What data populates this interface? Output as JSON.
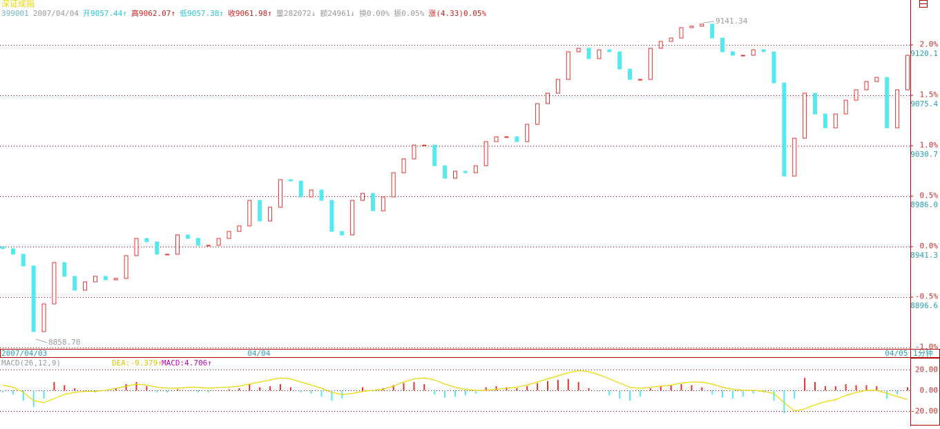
{
  "chart_data": {
    "type": "candlestick",
    "title": "深证成指",
    "header": [
      {
        "text": "399001",
        "color": "#6fb6c8"
      },
      {
        "text": "2007/04/04",
        "color": "#9a9a9a"
      },
      {
        "text": "开9057.44↑",
        "color": "#28c8d8"
      },
      {
        "text": "高9062.07↑",
        "color": "#d02020"
      },
      {
        "text": "低9057.38↑",
        "color": "#28c8d8"
      },
      {
        "text": "收9061.98↑",
        "color": "#d02020"
      },
      {
        "text": "量282072↓",
        "color": "#9a9a9a"
      },
      {
        "text": "额24961↓",
        "color": "#9a9a9a"
      },
      {
        "text": "换0.00%",
        "color": "#9a9a9a"
      },
      {
        "text": "振0.05%",
        "color": "#9a9a9a"
      },
      {
        "text": "涨(4.33)0.05%",
        "color": "#d02020"
      }
    ],
    "annotations": [
      "8858.70",
      "9141.34"
    ],
    "period": "1分钟",
    "up_color": "#e03030",
    "down_color": "#54e8f0",
    "categories": [
      "2007/04/03",
      null,
      null,
      null,
      null,
      null,
      null,
      null,
      null,
      null,
      null,
      null,
      null,
      null,
      null,
      null,
      null,
      null,
      null,
      null,
      null,
      null,
      null,
      null,
      "04/04",
      null,
      null,
      null,
      null,
      null,
      null,
      null,
      null,
      null,
      null,
      null,
      null,
      null,
      null,
      null,
      null,
      null,
      null,
      null,
      null,
      null,
      null,
      null,
      null,
      null,
      null,
      null,
      null,
      null,
      null,
      null,
      null,
      null,
      null,
      null,
      null,
      null,
      null,
      null,
      null,
      null,
      null,
      null,
      null,
      null,
      null,
      null,
      null,
      null,
      null,
      null,
      null,
      null,
      null,
      null,
      null,
      null,
      null,
      null,
      null,
      null,
      "04/05",
      null,
      null
    ],
    "open": [
      8941.3,
      8939.5,
      8934.6,
      8924.2,
      8866.0,
      8890.5,
      8927.2,
      8915.0,
      8902.7,
      8910.1,
      8915.0,
      8911.9,
      8913.1,
      8933.3,
      8948.6,
      8945.6,
      8934.6,
      8934.6,
      8951.7,
      8948.6,
      8942.5,
      8942.5,
      8948.6,
      8954.8,
      8959.7,
      8982.3,
      8964.0,
      8976.2,
      9000.7,
      8999.5,
      8985.4,
      8991.5,
      8982.3,
      8954.8,
      8951.7,
      8982.3,
      8988.5,
      8973.1,
      8985.4,
      9006.8,
      9019.1,
      9031.3,
      9031.3,
      9013.0,
      9001.9,
      9008.1,
      9006.8,
      9013.0,
      9034.4,
      9038.7,
      9038.7,
      9034.4,
      9049.7,
      9068.1,
      9077.3,
      9089.5,
      9114.0,
      9117.1,
      9107.9,
      9115.8,
      9114.0,
      9098.7,
      9089.5,
      9089.5,
      9117.1,
      9123.2,
      9126.2,
      9135.4,
      9136.7,
      9138.5,
      9126.2,
      9114.0,
      9110.9,
      9110.9,
      9115.8,
      9114.0,
      9086.4,
      9003.8,
      9037.4,
      9077.3,
      9058.9,
      9046.6,
      9058.9,
      9071.1,
      9080.3,
      9087.7,
      9091.3,
      9046.6,
      9080.3
    ],
    "close": [
      8939.5,
      8934.6,
      8924.2,
      8866.0,
      8890.5,
      8927.2,
      8915.0,
      8902.7,
      8910.1,
      8915.0,
      8911.9,
      8913.1,
      8933.3,
      8948.6,
      8945.6,
      8934.6,
      8934.6,
      8951.7,
      8948.6,
      8942.5,
      8942.5,
      8948.6,
      8954.8,
      8959.7,
      8982.3,
      8964.0,
      8976.2,
      9000.7,
      8999.5,
      8985.4,
      8991.5,
      8982.3,
      8954.8,
      8951.7,
      8982.3,
      8988.5,
      8973.1,
      8985.4,
      9006.8,
      9019.1,
      9031.3,
      9031.3,
      9013.0,
      9001.9,
      9008.1,
      9006.8,
      9013.0,
      9034.4,
      9038.7,
      9038.7,
      9034.4,
      9049.7,
      9068.1,
      9077.3,
      9089.5,
      9114.0,
      9117.1,
      9107.9,
      9115.8,
      9114.0,
      9098.7,
      9089.5,
      9089.5,
      9117.1,
      9123.2,
      9126.2,
      9135.4,
      9136.7,
      9138.5,
      9126.2,
      9114.0,
      9110.9,
      9110.9,
      9115.8,
      9114.0,
      9086.4,
      9003.8,
      9037.4,
      9077.3,
      9058.9,
      9046.6,
      9058.9,
      9071.1,
      9080.3,
      9087.7,
      9091.3,
      9046.6,
      9080.3,
      9110.9
    ],
    "ylim": [
      8850.7,
      9159.9
    ],
    "yticks": [
      {
        "value": 9120.1,
        "label": "9120.1"
      },
      {
        "value": 9075.4,
        "label": "9075.4"
      },
      {
        "value": 9030.7,
        "label": "9030.7"
      },
      {
        "value": 8986.0,
        "label": "8986.0"
      },
      {
        "value": 8941.3,
        "label": "8941.3"
      },
      {
        "value": 8896.6,
        "label": "8896.6"
      }
    ],
    "y2lim": [
      -1.014,
      2.445
    ],
    "y2ticks": [
      {
        "value": 2.0,
        "label": "2.0%"
      },
      {
        "value": 1.5,
        "label": "1.5%"
      },
      {
        "value": 1.0,
        "label": "1.0%"
      },
      {
        "value": 0.5,
        "label": "0.5%"
      },
      {
        "value": 0.0,
        "label": "0.0%"
      },
      {
        "value": -0.5,
        "label": "-0.5%"
      },
      {
        "value": -1.0,
        "label": "-1.0%"
      }
    ],
    "grid": true,
    "macd": {
      "title": "MACD(26,12,9)",
      "dea_label": "DEA:-9.379↑",
      "macd_label": "MACD:4.706↑",
      "dea_color": "#e8d800",
      "ylim": [
        -33.3,
        28.7
      ],
      "yticks": [
        {
          "value": 20,
          "label": "20.00"
        },
        {
          "value": 0,
          "label": "0.00"
        },
        {
          "value": -20,
          "label": "-20.00"
        }
      ],
      "values": [
        -2,
        -4,
        -10,
        -16,
        -8,
        8,
        5,
        2,
        -1,
        -2,
        -1,
        2,
        6,
        8,
        4,
        -2,
        -2,
        1,
        0,
        -2,
        -2,
        0,
        1,
        2,
        6,
        3,
        4,
        6,
        3,
        -2,
        -3,
        -6,
        -10,
        -8,
        0,
        3,
        -1,
        2,
        5,
        7,
        8,
        6,
        -4,
        -7,
        -6,
        -5,
        -3,
        3,
        4,
        3,
        2,
        4,
        7,
        9,
        10,
        11,
        8,
        2,
        -1,
        -5,
        -8,
        -10,
        -6,
        2,
        4,
        5,
        6,
        5,
        3,
        -4,
        -7,
        -8,
        -6,
        -3,
        -2,
        -10,
        -22,
        -8,
        12,
        8,
        4,
        4,
        6,
        5,
        5,
        4,
        -8,
        -4,
        3
      ],
      "dea": [
        5,
        3,
        -2,
        -10,
        -12,
        -8,
        -4,
        -2,
        -1,
        -1,
        0,
        2,
        4,
        6,
        5,
        3,
        2,
        2,
        3,
        3,
        2,
        3,
        3,
        4,
        6,
        8,
        10,
        12,
        11,
        8,
        5,
        2,
        -2,
        -4,
        -3,
        -1,
        0,
        1,
        4,
        8,
        11,
        12,
        10,
        6,
        3,
        1,
        0,
        0,
        1,
        2,
        3,
        5,
        8,
        11,
        14,
        17,
        19,
        18,
        15,
        11,
        7,
        3,
        2,
        3,
        4,
        5,
        7,
        8,
        8,
        6,
        3,
        1,
        0,
        0,
        -1,
        -3,
        -12,
        -20,
        -18,
        -14,
        -11,
        -9,
        -5,
        -2,
        0,
        0,
        -3,
        -6,
        -9
      ]
    }
  }
}
